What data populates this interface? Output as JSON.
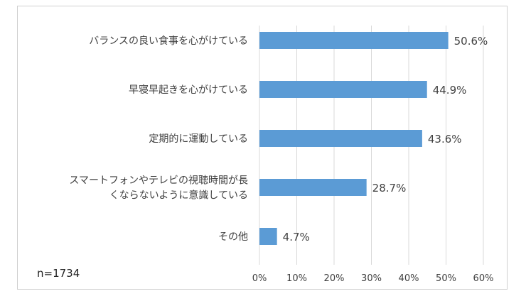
{
  "note": "n=1734",
  "chart_data": {
    "type": "bar",
    "orientation": "horizontal",
    "categories": [
      [
        "バランスの良い食事を心がけている"
      ],
      [
        "早寝早起きを心がけている"
      ],
      [
        "定期的に運動している"
      ],
      [
        "スマートフォンやテレビの視聴時間が長",
        "くならないように意識している"
      ],
      [
        "その他"
      ]
    ],
    "values": [
      50.6,
      44.9,
      43.6,
      28.7,
      4.7
    ],
    "value_labels": [
      "50.6%",
      "44.9%",
      "43.6%",
      "28.7%",
      "4.7%"
    ],
    "x_ticks": [
      "0%",
      "10%",
      "20%",
      "30%",
      "40%",
      "50%",
      "60%"
    ],
    "xlim": [
      0,
      60
    ],
    "grid": true,
    "bar_color": "#5b9bd5",
    "grid_color": "#d9d9d9"
  }
}
